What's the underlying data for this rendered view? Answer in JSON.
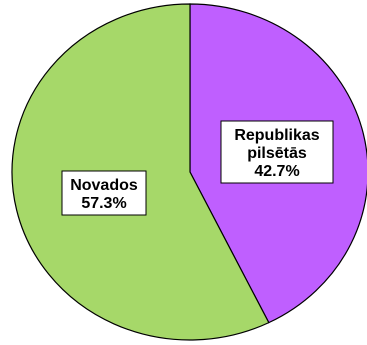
{
  "chart_data": {
    "type": "pie",
    "title": "",
    "slices": [
      {
        "label_lines": [
          "Republikas",
          "pilsētās",
          "42.7%"
        ],
        "value": 42.7,
        "color": "#BF5FFF"
      },
      {
        "label_lines": [
          "Novados",
          "57.3%"
        ],
        "value": 57.3,
        "color": "#A6D869"
      }
    ],
    "start_angle_deg": 0,
    "direction": "clockwise",
    "legend": "none",
    "outline_color": "#000000"
  }
}
